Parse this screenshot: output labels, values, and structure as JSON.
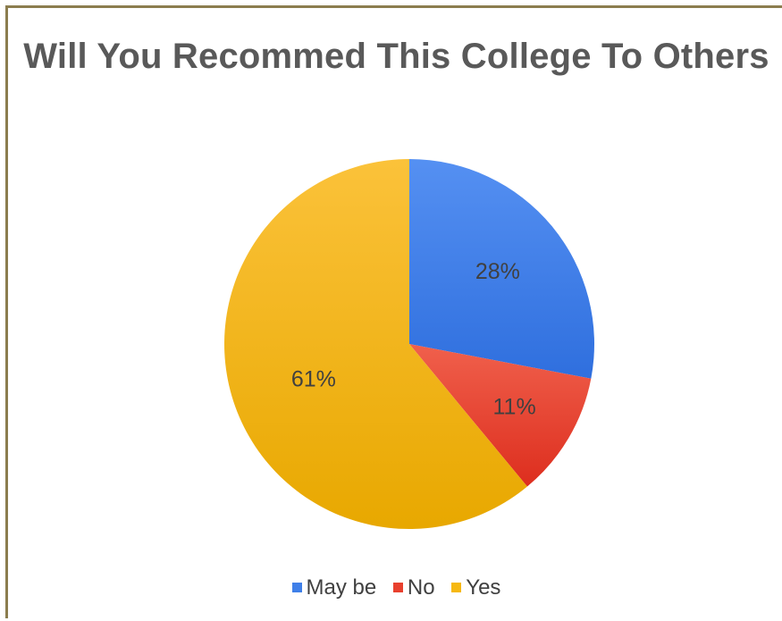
{
  "chart_data": {
    "type": "pie",
    "title": "Will You Recommed This College To Others",
    "categories": [
      "May be",
      "No",
      "Yes"
    ],
    "values": [
      28,
      11,
      61
    ],
    "data_labels": [
      "28%",
      "11%",
      "61%"
    ],
    "colors": [
      "#3f7fe8",
      "#e8402e",
      "#f6b811"
    ],
    "legend_position": "bottom"
  }
}
